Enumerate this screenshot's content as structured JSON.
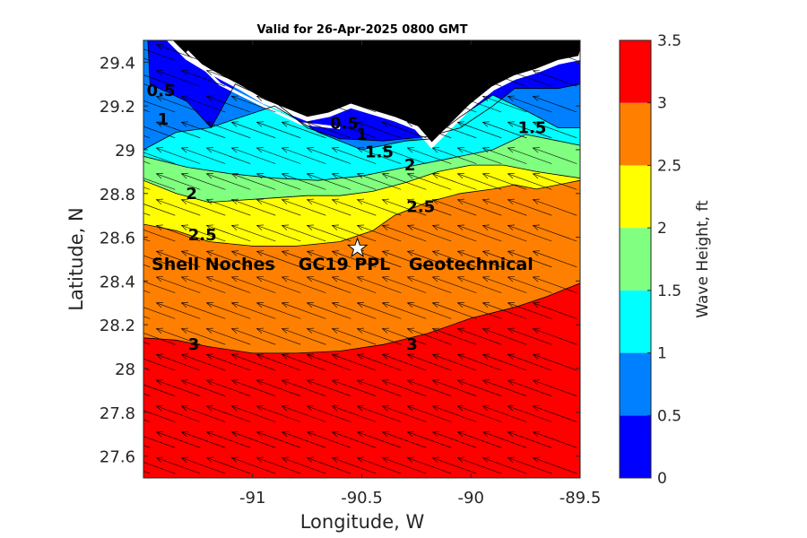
{
  "chart_data": {
    "type": "heatmap",
    "title": "Valid for 26-Apr-2025 0800 GMT",
    "xlabel": "Longitude, W",
    "ylabel": "Latitude, N",
    "xlim": [
      -91.5,
      -89.5
    ],
    "ylim": [
      27.5,
      29.5
    ],
    "x_ticks": [
      -91,
      -90.5,
      -90,
      -89.5
    ],
    "x_tick_labels": [
      "-91",
      "-90.5",
      "-90",
      "-89.5"
    ],
    "y_ticks": [
      27.6,
      27.8,
      28,
      28.2,
      28.4,
      28.6,
      28.8,
      29,
      29.2,
      29.4
    ],
    "y_tick_labels": [
      "27.6",
      "27.8",
      "28",
      "28.2",
      "28.4",
      "28.6",
      "28.8",
      "29",
      "29.2",
      "29.4"
    ],
    "colorbar": {
      "label": "Wave Height, ft",
      "levels": [
        0,
        0.5,
        1,
        1.5,
        2,
        2.5,
        3,
        3.5
      ],
      "tick_labels": [
        "0",
        "0.5",
        "1",
        "1.5",
        "2",
        "2.5",
        "3",
        "3.5"
      ],
      "colors": [
        "#0000ff",
        "#0080ff",
        "#00ffff",
        "#80ff80",
        "#ffff00",
        "#ff8000",
        "#ff0000"
      ]
    },
    "contour_lines": [
      {
        "level": 0.5,
        "points": [
          [
            -91.48,
            29.5
          ],
          [
            -91.47,
            29.3
          ],
          [
            -91.3,
            29.22
          ],
          [
            -91.19,
            29.1
          ],
          [
            -91.08,
            29.3
          ],
          [
            -90.9,
            29.22
          ],
          [
            -90.75,
            29.1
          ],
          [
            -90.6,
            29.05
          ],
          [
            -90.4,
            29.04
          ],
          [
            -90.2,
            29.06
          ],
          [
            -90.05,
            29.1
          ],
          [
            -89.9,
            29.2
          ],
          [
            -89.8,
            29.28
          ],
          [
            -89.6,
            29.28
          ],
          [
            -89.5,
            29.3
          ]
        ]
      },
      {
        "level": 1,
        "points": [
          [
            -91.5,
            29.0
          ],
          [
            -91.35,
            29.08
          ],
          [
            -91.2,
            29.1
          ],
          [
            -91.05,
            29.15
          ],
          [
            -90.9,
            29.2
          ],
          [
            -90.7,
            29.08
          ],
          [
            -90.5,
            29.0
          ],
          [
            -90.3,
            29.04
          ],
          [
            -90.18,
            29.05
          ],
          [
            -90.05,
            29.15
          ],
          [
            -89.9,
            29.25
          ],
          [
            -89.75,
            29.18
          ],
          [
            -89.6,
            29.1
          ],
          [
            -89.5,
            29.1
          ]
        ]
      },
      {
        "level": 1.5,
        "points": [
          [
            -91.5,
            28.97
          ],
          [
            -91.3,
            28.92
          ],
          [
            -91.1,
            28.89
          ],
          [
            -90.9,
            28.87
          ],
          [
            -90.7,
            28.86
          ],
          [
            -90.5,
            28.88
          ],
          [
            -90.3,
            28.92
          ],
          [
            -90.1,
            28.96
          ],
          [
            -89.9,
            29.0
          ],
          [
            -89.75,
            29.07
          ],
          [
            -89.6,
            29.04
          ],
          [
            -89.5,
            29.02
          ]
        ]
      },
      {
        "level": 2,
        "points": [
          [
            -91.5,
            28.86
          ],
          [
            -91.35,
            28.8
          ],
          [
            -91.2,
            28.76
          ],
          [
            -91.05,
            28.77
          ],
          [
            -90.9,
            28.78
          ],
          [
            -90.75,
            28.79
          ],
          [
            -90.6,
            28.79
          ],
          [
            -90.45,
            28.81
          ],
          [
            -90.3,
            28.85
          ],
          [
            -90.15,
            28.9
          ],
          [
            -90.0,
            28.93
          ],
          [
            -89.85,
            28.93
          ],
          [
            -89.7,
            28.9
          ],
          [
            -89.5,
            28.87
          ]
        ]
      },
      {
        "level": 2.5,
        "points": [
          [
            -91.5,
            28.66
          ],
          [
            -91.35,
            28.63
          ],
          [
            -91.2,
            28.58
          ],
          [
            -91.0,
            28.56
          ],
          [
            -90.8,
            28.56
          ],
          [
            -90.6,
            28.58
          ],
          [
            -90.45,
            28.63
          ],
          [
            -90.35,
            28.7
          ],
          [
            -90.2,
            28.76
          ],
          [
            -90.05,
            28.8
          ],
          [
            -89.9,
            28.82
          ],
          [
            -89.8,
            28.84
          ],
          [
            -89.7,
            28.82
          ],
          [
            -89.5,
            28.86
          ]
        ]
      },
      {
        "level": 3,
        "points": [
          [
            -91.5,
            28.14
          ],
          [
            -91.35,
            28.13
          ],
          [
            -91.2,
            28.1
          ],
          [
            -91.0,
            28.07
          ],
          [
            -90.8,
            28.07
          ],
          [
            -90.6,
            28.08
          ],
          [
            -90.4,
            28.11
          ],
          [
            -90.2,
            28.16
          ],
          [
            -90.0,
            28.23
          ],
          [
            -89.8,
            28.28
          ],
          [
            -89.65,
            28.33
          ],
          [
            -89.5,
            28.39
          ]
        ]
      }
    ],
    "contour_labels": [
      {
        "text": "0.5",
        "x": -91.42,
        "y": 29.27
      },
      {
        "text": "0.5",
        "x": -90.58,
        "y": 29.12
      },
      {
        "text": "1",
        "x": -90.5,
        "y": 29.07
      },
      {
        "text": "1",
        "x": -91.41,
        "y": 29.14
      },
      {
        "text": "1.5",
        "x": -90.42,
        "y": 28.99
      },
      {
        "text": "1.5",
        "x": -89.72,
        "y": 29.1
      },
      {
        "text": "2",
        "x": -90.28,
        "y": 28.93
      },
      {
        "text": "2",
        "x": -91.28,
        "y": 28.8
      },
      {
        "text": "2.5",
        "x": -90.23,
        "y": 28.74
      },
      {
        "text": "2.5",
        "x": -91.23,
        "y": 28.61
      },
      {
        "text": "3",
        "x": -91.27,
        "y": 28.11
      },
      {
        "text": "3",
        "x": -90.27,
        "y": 28.11
      }
    ],
    "annotations": [
      {
        "text": "Shell Noches",
        "x": -91.18,
        "y": 28.48
      },
      {
        "text": "GC19 PPL",
        "x": -90.58,
        "y": 28.48
      },
      {
        "text": "Geotechnical",
        "x": -90.0,
        "y": 28.48
      }
    ],
    "marker": {
      "symbol": "star",
      "x": -90.52,
      "y": 28.55
    },
    "vector_field": {
      "dir_dx": -1.0,
      "dir_dy": 0.36,
      "x_start": -91.47,
      "x_step": 0.115,
      "y_start": 27.52,
      "y_step": 0.118
    }
  }
}
